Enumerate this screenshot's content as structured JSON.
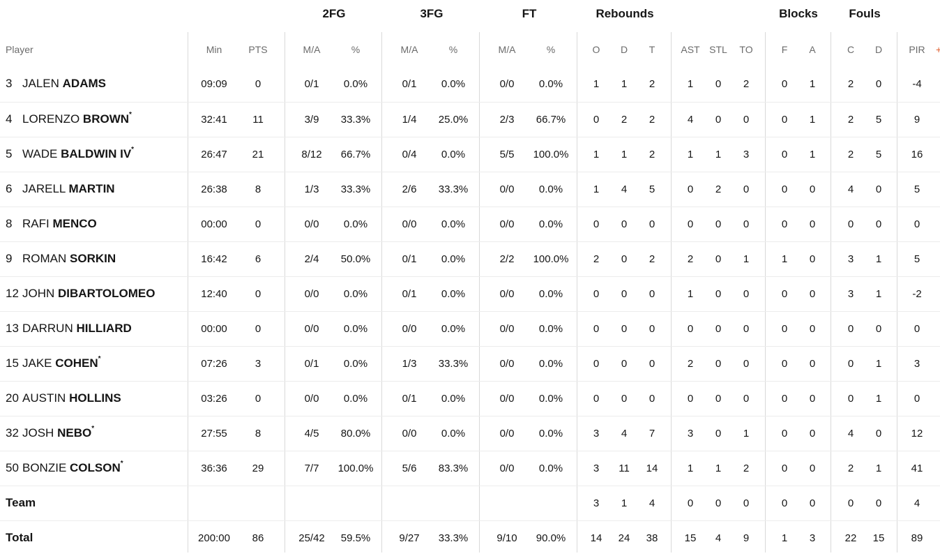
{
  "groups": [
    "2FG",
    "3FG",
    "FT",
    "Rebounds",
    "Blocks",
    "Fouls"
  ],
  "headers": [
    "Player",
    "Min",
    "PTS",
    "M/A",
    "%",
    "M/A",
    "%",
    "M/A",
    "%",
    "O",
    "D",
    "T",
    "AST",
    "STL",
    "TO",
    "F",
    "A",
    "C",
    "D",
    "PIR"
  ],
  "overflow_glyph": "+",
  "starter_mark": "*",
  "players": [
    {
      "num": "3",
      "first": "JALEN",
      "last": "ADAMS",
      "starter": false,
      "stats": [
        "09:09",
        "0",
        "0/1",
        "0.0%",
        "0/1",
        "0.0%",
        "0/0",
        "0.0%",
        "1",
        "1",
        "2",
        "1",
        "0",
        "2",
        "0",
        "1",
        "2",
        "0",
        "-4"
      ]
    },
    {
      "num": "4",
      "first": "LORENZO",
      "last": "BROWN",
      "starter": true,
      "stats": [
        "32:41",
        "11",
        "3/9",
        "33.3%",
        "1/4",
        "25.0%",
        "2/3",
        "66.7%",
        "0",
        "2",
        "2",
        "4",
        "0",
        "0",
        "0",
        "1",
        "2",
        "5",
        "9"
      ]
    },
    {
      "num": "5",
      "first": "WADE",
      "last": "BALDWIN IV",
      "starter": true,
      "stats": [
        "26:47",
        "21",
        "8/12",
        "66.7%",
        "0/4",
        "0.0%",
        "5/5",
        "100.0%",
        "1",
        "1",
        "2",
        "1",
        "1",
        "3",
        "0",
        "1",
        "2",
        "5",
        "16"
      ]
    },
    {
      "num": "6",
      "first": "JARELL",
      "last": "MARTIN",
      "starter": false,
      "stats": [
        "26:38",
        "8",
        "1/3",
        "33.3%",
        "2/6",
        "33.3%",
        "0/0",
        "0.0%",
        "1",
        "4",
        "5",
        "0",
        "2",
        "0",
        "0",
        "0",
        "4",
        "0",
        "5"
      ]
    },
    {
      "num": "8",
      "first": "RAFI",
      "last": "MENCO",
      "starter": false,
      "stats": [
        "00:00",
        "0",
        "0/0",
        "0.0%",
        "0/0",
        "0.0%",
        "0/0",
        "0.0%",
        "0",
        "0",
        "0",
        "0",
        "0",
        "0",
        "0",
        "0",
        "0",
        "0",
        "0"
      ]
    },
    {
      "num": "9",
      "first": "ROMAN",
      "last": "SORKIN",
      "starter": false,
      "stats": [
        "16:42",
        "6",
        "2/4",
        "50.0%",
        "0/1",
        "0.0%",
        "2/2",
        "100.0%",
        "2",
        "0",
        "2",
        "2",
        "0",
        "1",
        "1",
        "0",
        "3",
        "1",
        "5"
      ]
    },
    {
      "num": "12",
      "first": "JOHN",
      "last": "DIBARTOLOMEO",
      "starter": false,
      "stats": [
        "12:40",
        "0",
        "0/0",
        "0.0%",
        "0/1",
        "0.0%",
        "0/0",
        "0.0%",
        "0",
        "0",
        "0",
        "1",
        "0",
        "0",
        "0",
        "0",
        "3",
        "1",
        "-2"
      ]
    },
    {
      "num": "13",
      "first": "DARRUN",
      "last": "HILLIARD",
      "starter": false,
      "stats": [
        "00:00",
        "0",
        "0/0",
        "0.0%",
        "0/0",
        "0.0%",
        "0/0",
        "0.0%",
        "0",
        "0",
        "0",
        "0",
        "0",
        "0",
        "0",
        "0",
        "0",
        "0",
        "0"
      ]
    },
    {
      "num": "15",
      "first": "JAKE",
      "last": "COHEN",
      "starter": true,
      "stats": [
        "07:26",
        "3",
        "0/1",
        "0.0%",
        "1/3",
        "33.3%",
        "0/0",
        "0.0%",
        "0",
        "0",
        "0",
        "2",
        "0",
        "0",
        "0",
        "0",
        "0",
        "1",
        "3"
      ]
    },
    {
      "num": "20",
      "first": "AUSTIN",
      "last": "HOLLINS",
      "starter": false,
      "stats": [
        "03:26",
        "0",
        "0/0",
        "0.0%",
        "0/1",
        "0.0%",
        "0/0",
        "0.0%",
        "0",
        "0",
        "0",
        "0",
        "0",
        "0",
        "0",
        "0",
        "0",
        "1",
        "0"
      ]
    },
    {
      "num": "32",
      "first": "JOSH",
      "last": "NEBO",
      "starter": true,
      "stats": [
        "27:55",
        "8",
        "4/5",
        "80.0%",
        "0/0",
        "0.0%",
        "0/0",
        "0.0%",
        "3",
        "4",
        "7",
        "3",
        "0",
        "1",
        "0",
        "0",
        "4",
        "0",
        "12"
      ]
    },
    {
      "num": "50",
      "first": "BONZIE",
      "last": "COLSON",
      "starter": true,
      "stats": [
        "36:36",
        "29",
        "7/7",
        "100.0%",
        "5/6",
        "83.3%",
        "0/0",
        "0.0%",
        "3",
        "11",
        "14",
        "1",
        "1",
        "2",
        "0",
        "0",
        "2",
        "1",
        "41"
      ]
    }
  ],
  "team": {
    "label": "Team",
    "stats": [
      "",
      "",
      "",
      "",
      "",
      "",
      "",
      "",
      "3",
      "1",
      "4",
      "0",
      "0",
      "0",
      "0",
      "0",
      "0",
      "0",
      "4"
    ]
  },
  "total": {
    "label": "Total",
    "stats": [
      "200:00",
      "86",
      "25/42",
      "59.5%",
      "9/27",
      "33.3%",
      "9/10",
      "90.0%",
      "14",
      "24",
      "38",
      "15",
      "4",
      "9",
      "1",
      "3",
      "22",
      "15",
      "89"
    ]
  }
}
